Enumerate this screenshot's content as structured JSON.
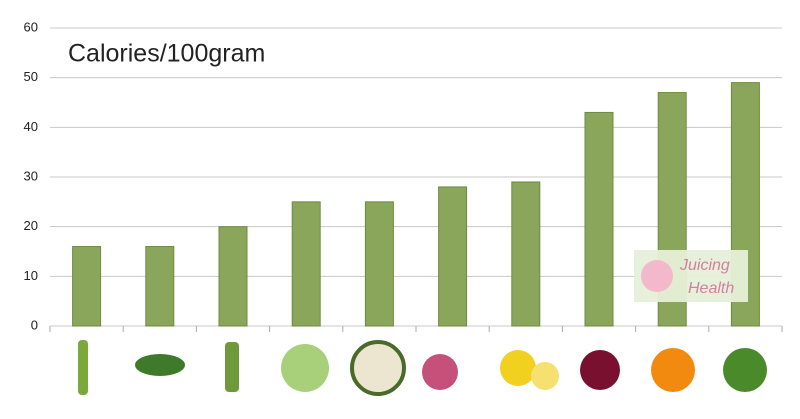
{
  "chart_data": {
    "type": "bar",
    "title": "Calories/100gram",
    "categories": [
      null,
      null,
      null,
      null,
      null,
      null,
      null,
      null,
      null,
      null
    ],
    "values": [
      16,
      16,
      20,
      25,
      25,
      28,
      29,
      43,
      47,
      49
    ],
    "color": "#8aa65a",
    "ylim": [
      0,
      60
    ],
    "yticks": [
      0,
      10,
      20,
      30,
      40,
      50,
      60
    ],
    "grid": true,
    "annotations": [
      "Juicing",
      "Health"
    ]
  }
}
